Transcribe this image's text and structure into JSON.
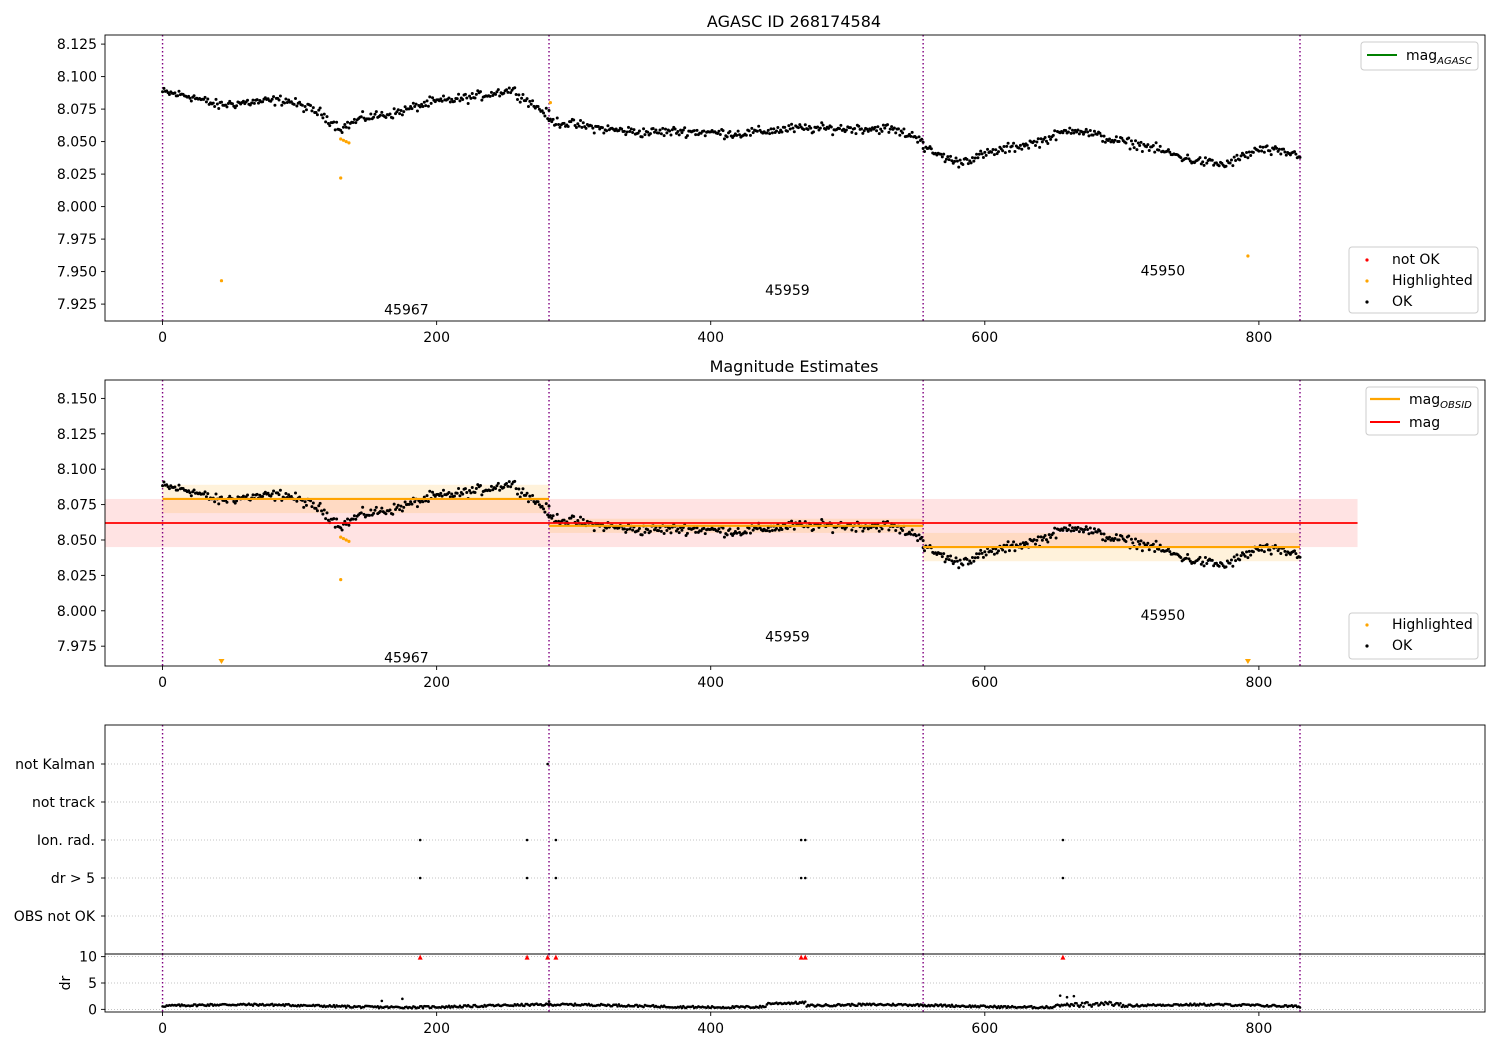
{
  "chart_data": [
    {
      "type": "scatter",
      "title": "AGASC ID 268174584",
      "xlabel": "",
      "ylabel": "",
      "xlim": [
        -42,
        965
      ],
      "ylim": [
        7.912,
        8.132
      ],
      "xticks": [
        0,
        200,
        400,
        600,
        800
      ],
      "yticks": [
        7.925,
        7.95,
        7.975,
        8.0,
        8.025,
        8.05,
        8.075,
        8.1,
        8.125
      ],
      "ytick_labels": [
        "7.925",
        "7.950",
        "7.975",
        "8.000",
        "8.025",
        "8.050",
        "8.075",
        "8.100",
        "8.125"
      ],
      "obs_boundaries": [
        0,
        282,
        555,
        830
      ],
      "obs_labels": [
        {
          "text": "45967",
          "x": 140,
          "y": 7.921
        },
        {
          "text": "45959",
          "x": 418,
          "y": 7.936
        },
        {
          "text": "45950",
          "x": 692,
          "y": 7.951
        }
      ],
      "series": [
        {
          "name": "OK",
          "color": "#000000",
          "segments": [
            {
              "x0": 0,
              "x1": 282,
              "baseline": [
                [
                  0,
                  8.088
                ],
                [
                  20,
                  8.085
                ],
                [
                  40,
                  8.078
                ],
                [
                  60,
                  8.08
                ],
                [
                  90,
                  8.082
                ],
                [
                  115,
                  8.072
                ],
                [
                  130,
                  8.06
                ],
                [
                  145,
                  8.068
                ],
                [
                  170,
                  8.072
                ],
                [
                  195,
                  8.08
                ],
                [
                  225,
                  8.084
                ],
                [
                  255,
                  8.09
                ],
                [
                  282,
                  8.07
                ]
              ]
            },
            {
              "x0": 282,
              "x1": 555,
              "baseline": [
                [
                  282,
                  8.066
                ],
                [
                  320,
                  8.06
                ],
                [
                  350,
                  8.057
                ],
                [
                  380,
                  8.058
                ],
                [
                  420,
                  8.056
                ],
                [
                  460,
                  8.06
                ],
                [
                  500,
                  8.06
                ],
                [
                  530,
                  8.06
                ],
                [
                  555,
                  8.052
                ]
              ]
            },
            {
              "x0": 555,
              "x1": 830,
              "baseline": [
                [
                  555,
                  8.045
                ],
                [
                  580,
                  8.034
                ],
                [
                  610,
                  8.043
                ],
                [
                  640,
                  8.05
                ],
                [
                  665,
                  8.06
                ],
                [
                  690,
                  8.052
                ],
                [
                  720,
                  8.046
                ],
                [
                  750,
                  8.036
                ],
                [
                  775,
                  8.032
                ],
                [
                  800,
                  8.044
                ],
                [
                  830,
                  8.04
                ]
              ]
            }
          ]
        },
        {
          "name": "Highlighted",
          "color": "#ffa500",
          "points": [
            [
              43,
              7.943
            ],
            [
              130,
              8.052
            ],
            [
              132,
              8.051
            ],
            [
              134,
              8.05
            ],
            [
              136,
              8.049
            ],
            [
              130,
              8.022
            ],
            [
              283,
              8.08
            ],
            [
              792,
              7.962
            ]
          ]
        },
        {
          "name": "not OK",
          "color": "#ff0000",
          "points": []
        }
      ],
      "legend_upper": [
        {
          "name": "mag_AGASC",
          "color": "#008000"
        }
      ],
      "legend_lower": [
        {
          "name": "not OK",
          "color": "#ff0000"
        },
        {
          "name": "Highlighted",
          "color": "#ffa500"
        },
        {
          "name": "OK",
          "color": "#000000"
        }
      ]
    },
    {
      "type": "scatter",
      "title": "Magnitude Estimates",
      "xlabel": "",
      "ylabel": "",
      "xlim": [
        -42,
        965
      ],
      "ylim": [
        7.961,
        8.163
      ],
      "xticks": [
        0,
        200,
        400,
        600,
        800
      ],
      "yticks": [
        7.975,
        8.0,
        8.025,
        8.05,
        8.075,
        8.1,
        8.125,
        8.15
      ],
      "ytick_labels": [
        "7.975",
        "8.000",
        "8.025",
        "8.050",
        "8.075",
        "8.100",
        "8.125",
        "8.150"
      ],
      "obs_boundaries": [
        0,
        282,
        555,
        830
      ],
      "obs_labels": [
        {
          "text": "45967",
          "x": 140,
          "y": 7.967
        },
        {
          "text": "45959",
          "x": 418,
          "y": 7.982
        },
        {
          "text": "45950",
          "x": 692,
          "y": 7.997
        }
      ],
      "mag": {
        "value": 8.062,
        "low": 8.045,
        "high": 8.079,
        "x0": -42,
        "x1": 872
      },
      "mag_obsid": [
        {
          "x0": 0,
          "x1": 282,
          "value": 8.079,
          "low": 8.069,
          "high": 8.089
        },
        {
          "x0": 282,
          "x1": 555,
          "value": 8.06,
          "low": 8.055,
          "high": 8.065
        },
        {
          "x0": 555,
          "x1": 830,
          "value": 8.045,
          "low": 8.035,
          "high": 8.055
        }
      ],
      "highlighted_points": [
        [
          130,
          8.052
        ],
        [
          132,
          8.051
        ],
        [
          134,
          8.05
        ],
        [
          136,
          8.049
        ],
        [
          130,
          8.022
        ]
      ],
      "off_scale_markers": [
        43,
        792
      ],
      "legend_upper": [
        {
          "name": "mag_OBSID",
          "color": "#ffa500"
        },
        {
          "name": "mag",
          "color": "#ff0000"
        }
      ],
      "legend_lower": [
        {
          "name": "Highlighted",
          "color": "#ffa500"
        },
        {
          "name": "OK",
          "color": "#000000"
        }
      ]
    },
    {
      "type": "scatter",
      "title": "",
      "xlim": [
        -42,
        965
      ],
      "flag_rows": [
        "not Kalman",
        "not track",
        "Ion. rad.",
        "dr > 5",
        "OBS not OK"
      ],
      "flag_points": {
        "not Kalman": [
          281
        ],
        "not track": [],
        "Ion. rad.": [
          188,
          266,
          287,
          466,
          469,
          657
        ],
        "dr > 5": [
          188,
          266,
          287,
          466,
          469,
          657
        ],
        "OBS not OK": []
      },
      "obs_boundaries": [
        0,
        282,
        555,
        830
      ]
    },
    {
      "type": "scatter",
      "title": "",
      "ylabel": "dr",
      "xlim": [
        -42,
        965
      ],
      "ylim": [
        -0.5,
        10.5
      ],
      "xticks": [
        0,
        200,
        400,
        600,
        800
      ],
      "yticks": [
        0,
        5,
        10
      ],
      "ytick_labels": [
        "0",
        "5",
        "10"
      ],
      "dr_clipped_markers": [
        188,
        266,
        281,
        287,
        466,
        469,
        657
      ],
      "dr_outliers": [
        [
          160,
          1.6
        ],
        [
          175,
          2.0
        ],
        [
          282,
          1.5
        ],
        [
          655,
          2.6
        ],
        [
          660,
          2.3
        ],
        [
          665,
          2.5
        ]
      ],
      "obs_boundaries": [
        0,
        282,
        555,
        830
      ]
    }
  ]
}
